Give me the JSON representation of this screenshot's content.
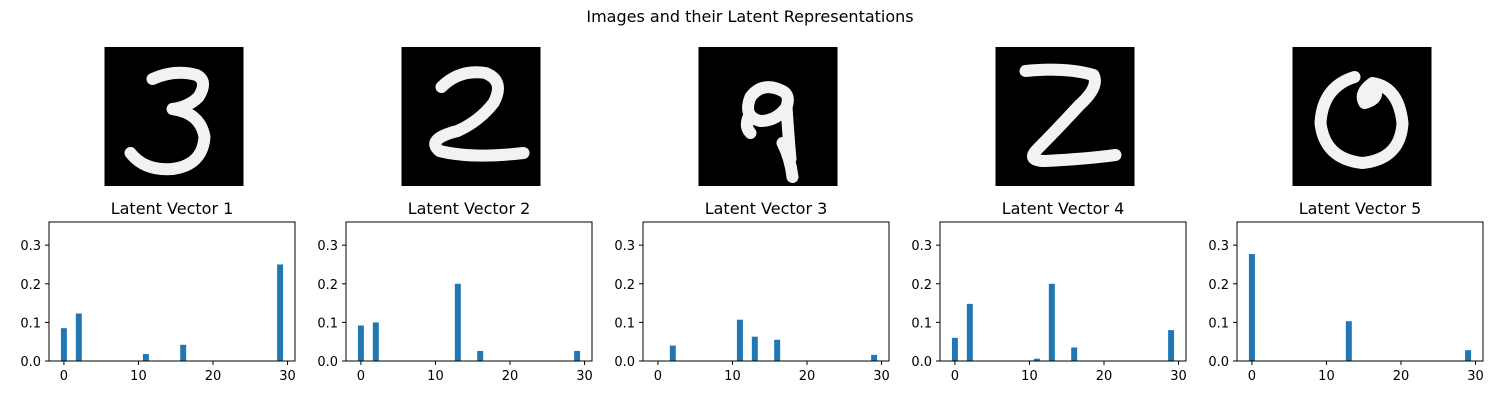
{
  "figure": {
    "title": "Images and their Latent Representations"
  },
  "chart_data": [
    {
      "type": "bar",
      "title": "Latent Vector 1",
      "digit_image": "handwritten-digit-3",
      "xlim": [
        -2,
        31
      ],
      "ylim": [
        0,
        0.36
      ],
      "xticks": [
        0,
        10,
        20,
        30
      ],
      "yticks": [
        0.0,
        0.1,
        0.2,
        0.3
      ],
      "x": [
        0,
        2,
        11,
        16,
        29
      ],
      "values": [
        0.085,
        0.123,
        0.018,
        0.042,
        0.25
      ],
      "color": "#1f77b4"
    },
    {
      "type": "bar",
      "title": "Latent Vector 2",
      "digit_image": "handwritten-digit-2",
      "xlim": [
        -2,
        31
      ],
      "ylim": [
        0,
        0.36
      ],
      "xticks": [
        0,
        10,
        20,
        30
      ],
      "yticks": [
        0.0,
        0.1,
        0.2,
        0.3
      ],
      "x": [
        0,
        2,
        13,
        16,
        29
      ],
      "values": [
        0.092,
        0.1,
        0.2,
        0.026,
        0.026
      ],
      "color": "#1f77b4"
    },
    {
      "type": "bar",
      "title": "Latent Vector 3",
      "digit_image": "handwritten-digit-9",
      "xlim": [
        -2,
        31
      ],
      "ylim": [
        0,
        0.36
      ],
      "xticks": [
        0,
        10,
        20,
        30
      ],
      "yticks": [
        0.0,
        0.1,
        0.2,
        0.3
      ],
      "x": [
        2,
        11,
        13,
        16,
        29
      ],
      "values": [
        0.04,
        0.107,
        0.063,
        0.055,
        0.016
      ],
      "color": "#1f77b4"
    },
    {
      "type": "bar",
      "title": "Latent Vector 4",
      "digit_image": "handwritten-digit-2",
      "xlim": [
        -2,
        31
      ],
      "ylim": [
        0,
        0.36
      ],
      "xticks": [
        0,
        10,
        20,
        30
      ],
      "yticks": [
        0.0,
        0.1,
        0.2,
        0.3
      ],
      "x": [
        0,
        2,
        11,
        13,
        16,
        29
      ],
      "values": [
        0.06,
        0.148,
        0.006,
        0.2,
        0.035,
        0.08
      ],
      "color": "#1f77b4"
    },
    {
      "type": "bar",
      "title": "Latent Vector 5",
      "digit_image": "handwritten-digit-0",
      "xlim": [
        -2,
        31
      ],
      "ylim": [
        0,
        0.36
      ],
      "xticks": [
        0,
        10,
        20,
        30
      ],
      "yticks": [
        0.0,
        0.1,
        0.2,
        0.3
      ],
      "x": [
        0,
        13,
        29
      ],
      "values": [
        0.277,
        0.103,
        0.028
      ],
      "color": "#1f77b4"
    }
  ]
}
